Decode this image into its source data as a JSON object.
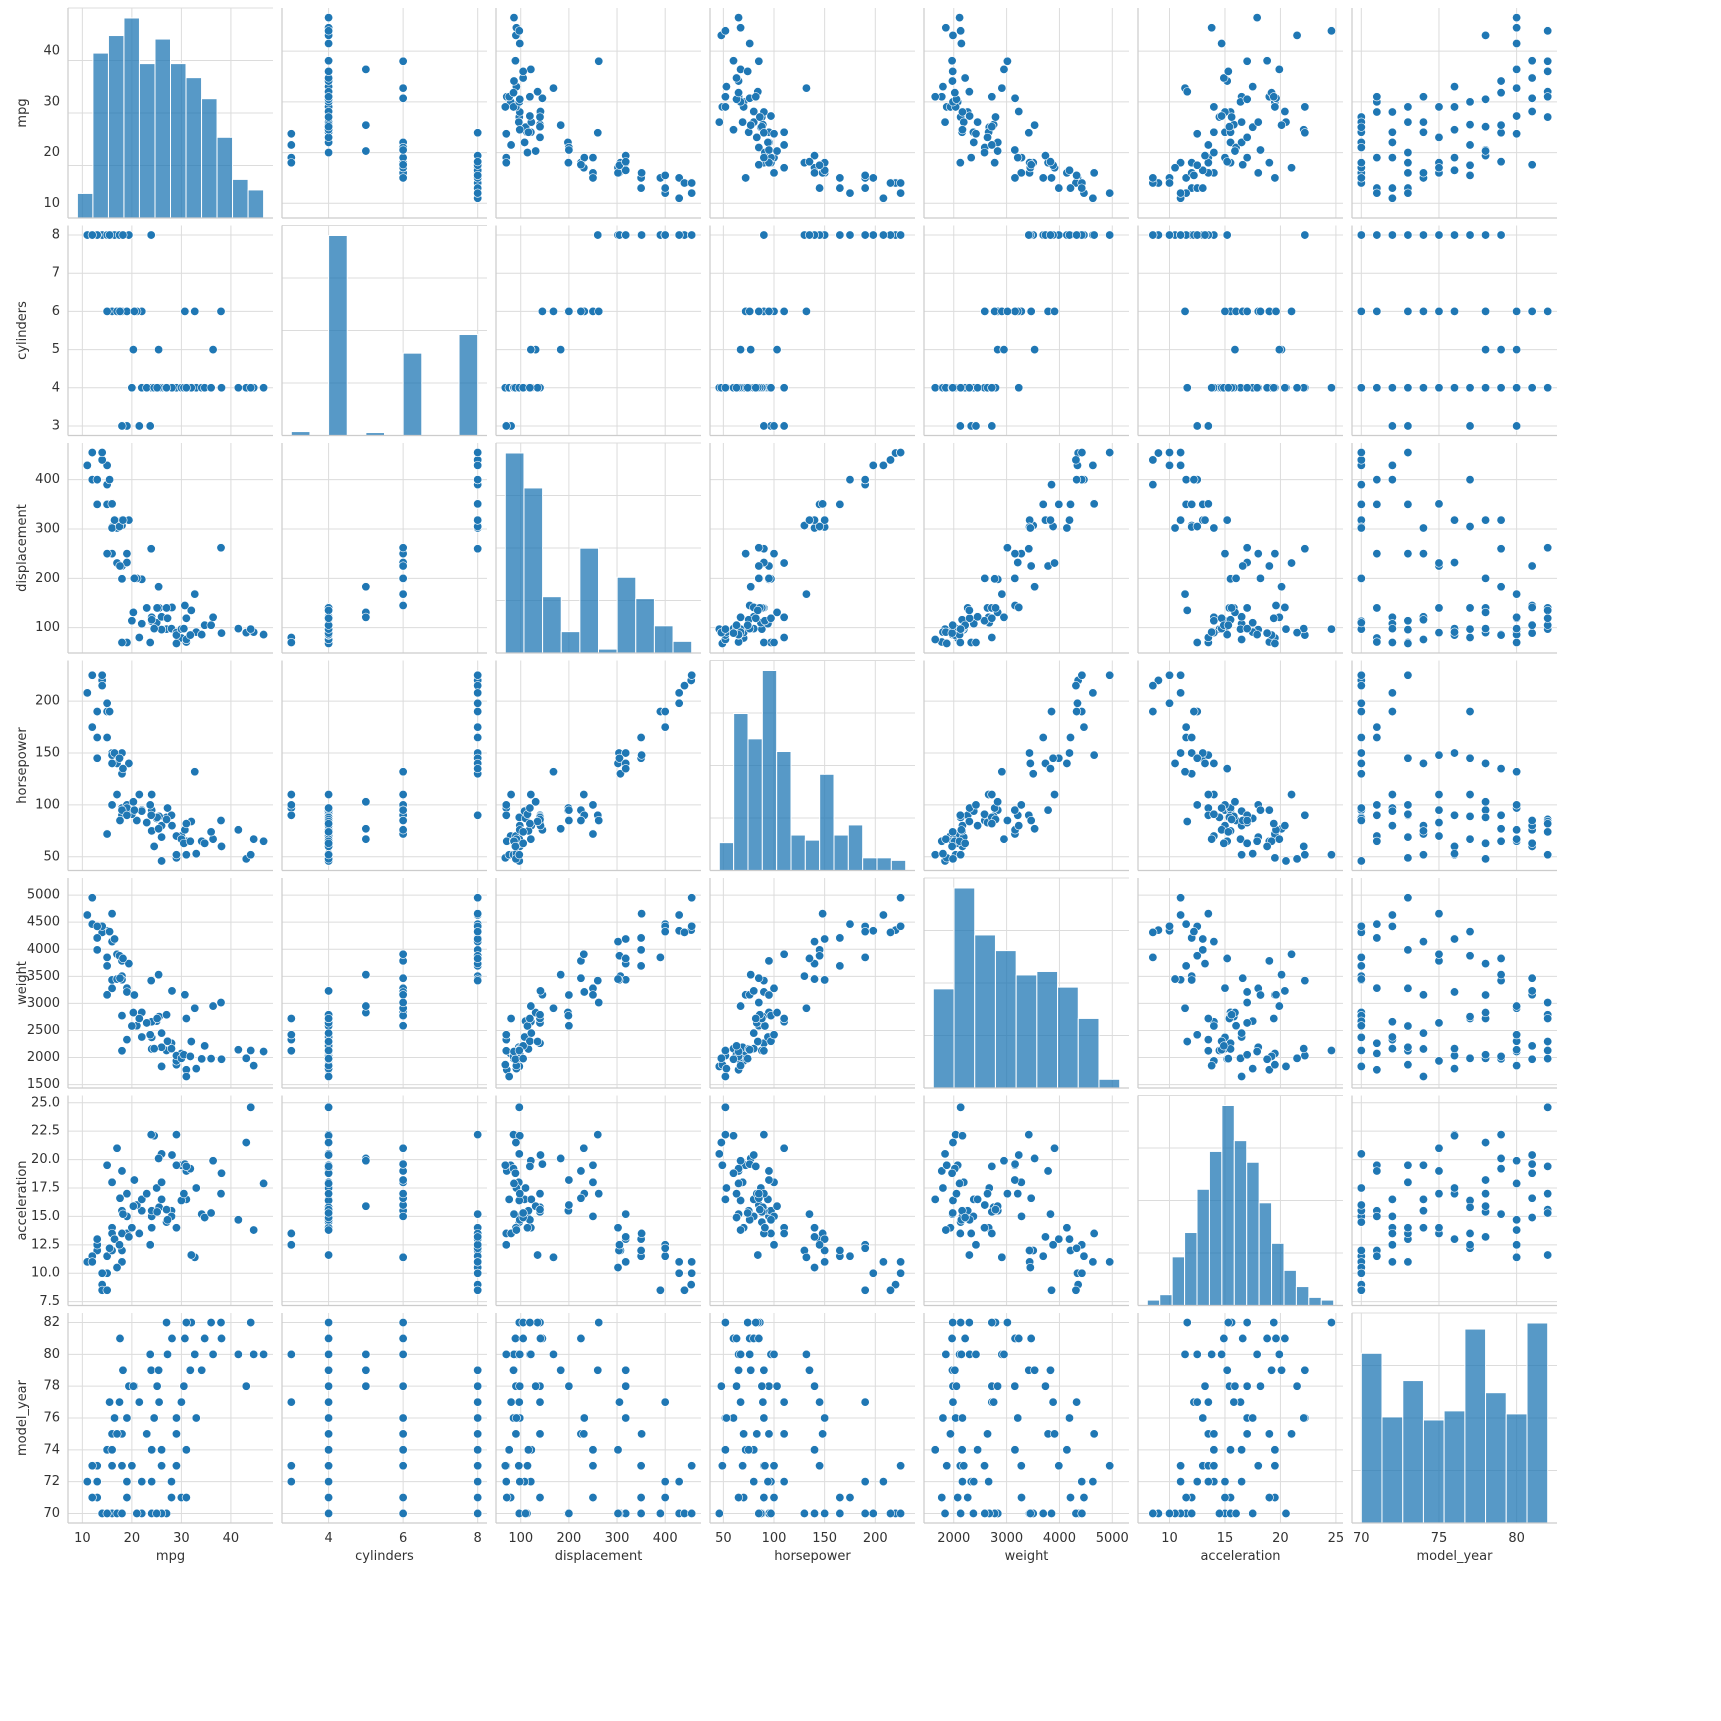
{
  "chart_data": {
    "type": "pairplot",
    "color": "#1f77b4",
    "grid": true,
    "variables": [
      {
        "name": "mpg",
        "lim": [
          7.1,
          48.5
        ],
        "xticks": [
          10,
          20,
          30,
          40
        ],
        "yticks": [
          10,
          20,
          30,
          40
        ]
      },
      {
        "name": "cylinders",
        "lim": [
          2.75,
          8.25
        ],
        "xticks": [
          4,
          6,
          8
        ],
        "yticks": [
          3,
          4,
          5,
          6,
          7,
          8
        ]
      },
      {
        "name": "displacement",
        "lim": [
          48.65,
          474.35
        ],
        "xticks": [
          100,
          200,
          300,
          400
        ],
        "yticks": [
          100,
          200,
          300,
          400
        ]
      },
      {
        "name": "horsepower",
        "lim": [
          36.8,
          239.2
        ],
        "xticks": [
          50,
          100,
          150,
          200
        ],
        "yticks": [
          50,
          100,
          150,
          200
        ]
      },
      {
        "name": "weight",
        "lim": [
          1436.65,
          5316.35
        ],
        "xticks": [
          2000,
          3000,
          4000,
          5000
        ],
        "yticks": [
          1500,
          2000,
          2500,
          3000,
          3500,
          4000,
          4500,
          5000
        ]
      },
      {
        "name": "acceleration",
        "lim": [
          7.16,
          25.64
        ],
        "xticks": [
          10,
          15,
          20,
          25
        ],
        "yticks": [
          7.5,
          {
            "value": 10,
            "label": "10.0"
          },
          12.5,
          {
            "value": 15,
            "label": "15.0"
          },
          17.5,
          {
            "value": 20,
            "label": "20.0"
          },
          22.5,
          {
            "value": 25,
            "label": "25.0"
          }
        ]
      },
      {
        "name": "model_year",
        "lim": [
          69.4,
          82.6
        ],
        "xticks": [
          70,
          75,
          80
        ],
        "yticks": [
          70,
          72,
          74,
          76,
          78,
          80,
          82
        ]
      }
    ],
    "rows": [
      [
        18,
        8,
        307,
        130,
        3504,
        12,
        70
      ],
      [
        15,
        8,
        350,
        165,
        3693,
        11.5,
        70
      ],
      [
        18,
        8,
        318,
        150,
        3436,
        11,
        70
      ],
      [
        16,
        8,
        304,
        150,
        3433,
        12,
        70
      ],
      [
        17,
        8,
        302,
        140,
        3449,
        10.5,
        70
      ],
      [
        15,
        8,
        429,
        198,
        4341,
        10,
        70
      ],
      [
        14,
        8,
        454,
        220,
        4354,
        9,
        70
      ],
      [
        14,
        8,
        440,
        215,
        4312,
        8.5,
        70
      ],
      [
        14,
        8,
        455,
        225,
        4425,
        10,
        70
      ],
      [
        15,
        8,
        390,
        190,
        3850,
        8.5,
        70
      ],
      [
        24,
        4,
        113,
        95,
        2372,
        15,
        70
      ],
      [
        22,
        6,
        198,
        95,
        2833,
        15.5,
        70
      ],
      [
        18,
        6,
        199,
        97,
        2774,
        15.5,
        70
      ],
      [
        27,
        4,
        97,
        88,
        2130,
        14.5,
        70
      ],
      [
        26,
        4,
        97,
        46,
        1835,
        20.5,
        70
      ],
      [
        25,
        4,
        110,
        87,
        2672,
        17.5,
        70
      ],
      [
        21,
        6,
        200,
        85,
        2587,
        16,
        70
      ],
      [
        28,
        4,
        140,
        90,
        2264,
        15.5,
        71
      ],
      [
        19,
        6,
        250,
        100,
        3282,
        15,
        71
      ],
      [
        13,
        8,
        350,
        165,
        4209,
        12,
        71
      ],
      [
        12,
        8,
        400,
        175,
        4464,
        11.5,
        71
      ],
      [
        30,
        4,
        79,
        70,
        2074,
        19.5,
        71
      ],
      [
        31,
        4,
        71,
        65,
        1773,
        19,
        71
      ],
      [
        13,
        8,
        400,
        190,
        4422,
        12.5,
        72
      ],
      [
        24,
        4,
        121,
        110,
        2660,
        14,
        72
      ],
      [
        19,
        3,
        70,
        97,
        2330,
        13.5,
        72
      ],
      [
        22,
        4,
        108,
        94,
        2379,
        16.5,
        72
      ],
      [
        28,
        4,
        98,
        80,
        2164,
        15,
        72
      ],
      [
        11,
        8,
        429,
        208,
        4633,
        11,
        72
      ],
      [
        13,
        8,
        350,
        145,
        3988,
        13,
        73
      ],
      [
        16,
        6,
        250,
        100,
        3278,
        18,
        73
      ],
      [
        12,
        8,
        455,
        225,
        4951,
        11,
        73
      ],
      [
        18,
        3,
        70,
        90,
        2124,
        13.5,
        73
      ],
      [
        29,
        4,
        68,
        49,
        1867,
        19.5,
        73
      ],
      [
        20,
        4,
        114,
        91,
        2582,
        14,
        73
      ],
      [
        26,
        4,
        96,
        69,
        2189,
        18,
        73
      ],
      [
        31,
        4,
        76,
        52,
        1649,
        16.5,
        74
      ],
      [
        26,
        4,
        122,
        80,
        2451,
        16.5,
        74
      ],
      [
        15,
        6,
        250,
        72,
        3158,
        19.5,
        74
      ],
      [
        16,
        8,
        302,
        140,
        4141,
        14,
        74
      ],
      [
        24,
        4,
        116,
        75,
        2158,
        15.5,
        74
      ],
      [
        18,
        6,
        225,
        95,
        3785,
        19,
        75
      ],
      [
        16,
        8,
        351,
        148,
        4657,
        13.5,
        75
      ],
      [
        29,
        4,
        90,
        70,
        1937,
        14,
        75
      ],
      [
        23,
        4,
        140,
        83,
        2639,
        17,
        75
      ],
      [
        17,
        6,
        231,
        110,
        3907,
        21,
        75
      ],
      [
        29,
        4,
        85,
        52,
        2035,
        22.2,
        76
      ],
      [
        16.5,
        8,
        318,
        150,
        4190,
        13,
        76
      ],
      [
        24.5,
        4,
        98,
        60,
        2164,
        22.1,
        76
      ],
      [
        19,
        6,
        232,
        90,
        3211,
        17,
        76
      ],
      [
        33,
        4,
        91,
        53,
        1795,
        17.5,
        76
      ],
      [
        15.5,
        8,
        400,
        190,
        4325,
        12.2,
        77
      ],
      [
        21.5,
        3,
        80,
        110,
        2720,
        13.5,
        77
      ],
      [
        30,
        4,
        97,
        67,
        1985,
        16.4,
        77
      ],
      [
        25.5,
        4,
        140,
        89,
        2755,
        15.8,
        77
      ],
      [
        17.5,
        8,
        305,
        145,
        3880,
        12.5,
        77
      ],
      [
        20.5,
        6,
        200,
        95,
        3155,
        18.2,
        78
      ],
      [
        43.1,
        4,
        90,
        48,
        1985,
        21.5,
        78
      ],
      [
        19.4,
        8,
        318,
        140,
        3735,
        13.2,
        78
      ],
      [
        30.5,
        4,
        98,
        63,
        2051,
        17,
        78
      ],
      [
        25.1,
        4,
        140,
        88,
        2720,
        15.4,
        78
      ],
      [
        20.3,
        5,
        131,
        103,
        2830,
        15.9,
        78
      ],
      [
        23.9,
        8,
        260,
        90,
        3420,
        22.2,
        79
      ],
      [
        34.1,
        4,
        86,
        65,
        1975,
        15.2,
        79
      ],
      [
        18.2,
        8,
        318,
        135,
        3830,
        15.2,
        79
      ],
      [
        25.4,
        5,
        183,
        77,
        3530,
        20.1,
        79
      ],
      [
        31.8,
        4,
        85,
        65,
        2020,
        19.2,
        79
      ],
      [
        44.6,
        4,
        91,
        67,
        1850,
        13.8,
        80
      ],
      [
        46.6,
        4,
        86,
        65,
        2110,
        17.9,
        80
      ],
      [
        32.7,
        6,
        168,
        132,
        2910,
        11.4,
        80
      ],
      [
        27.2,
        4,
        119,
        97,
        2300,
        14.7,
        80
      ],
      [
        23.7,
        3,
        70,
        100,
        2420,
        12.5,
        80
      ],
      [
        36.4,
        5,
        121,
        67,
        2950,
        19.9,
        80
      ],
      [
        41.5,
        4,
        98,
        76,
        2144,
        14.7,
        80
      ],
      [
        30.7,
        6,
        145,
        76,
        3160,
        19.6,
        81
      ],
      [
        38.1,
        4,
        89,
        60,
        1968,
        18.8,
        81
      ],
      [
        28.1,
        4,
        141,
        80,
        3230,
        20.4,
        81
      ],
      [
        17.6,
        6,
        225,
        85,
        3465,
        16.6,
        81
      ],
      [
        34.7,
        4,
        105,
        63,
        2215,
        14.9,
        81
      ],
      [
        38,
        6,
        262,
        85,
        3015,
        17,
        82
      ],
      [
        44,
        4,
        97,
        52,
        2130,
        24.6,
        82
      ],
      [
        27,
        4,
        140,
        86,
        2790,
        15.6,
        82
      ],
      [
        32,
        4,
        135,
        84,
        2295,
        11.6,
        82
      ],
      [
        36,
        4,
        105,
        74,
        1980,
        15.3,
        82
      ],
      [
        31,
        4,
        119,
        82,
        2720,
        19.4,
        82
      ]
    ],
    "histograms": [
      {
        "bins": [
          9,
          12.13,
          15.27,
          18.4,
          21.53,
          24.67,
          27.8,
          30.93,
          34.07,
          37.2,
          40.33,
          43.47,
          46.6
        ],
        "counts": [
          7,
          47,
          52,
          57,
          44,
          51,
          44,
          40,
          34,
          23,
          11,
          8
        ]
      },
      {
        "bins": [
          3,
          3.5,
          4,
          4.5,
          5,
          5.5,
          6,
          6.5,
          7,
          7.5,
          8
        ],
        "counts": [
          4,
          0,
          204,
          0,
          3,
          0,
          84,
          0,
          0,
          103
        ]
      },
      {
        "bins": [
          68,
          106.7,
          145.4,
          184.1,
          222.8,
          261.5,
          300.2,
          338.9,
          377.6,
          416.3,
          455
        ],
        "counts": [
          103,
          85,
          29,
          11,
          54,
          2,
          39,
          28,
          14,
          6
        ]
      },
      {
        "bins": [
          46,
          60.15,
          74.31,
          88.46,
          102.62,
          116.77,
          130.92,
          145.08,
          159.23,
          173.38,
          187.54,
          201.69,
          215.85,
          230
        ],
        "counts": [
          11,
          62,
          52,
          79,
          47,
          14,
          12,
          38,
          14,
          18,
          5,
          5,
          4
        ]
      },
      {
        "bins": [
          1613,
          2004.9,
          2396.8,
          2788.7,
          3180.6,
          3572.4,
          3964.3,
          4356.2,
          4748.1,
          5140
        ],
        "counts": [
          57,
          115,
          88,
          79,
          65,
          67,
          58,
          40,
          5
        ]
      },
      {
        "bins": [
          8,
          9.12,
          10.24,
          11.36,
          12.48,
          13.6,
          14.72,
          15.84,
          16.96,
          18.08,
          19.2,
          20.32,
          21.44,
          22.56,
          23.68,
          24.8
        ],
        "counts": [
          2,
          4,
          18,
          27,
          43,
          57,
          74,
          61,
          53,
          38,
          23,
          13,
          7,
          3,
          2
        ]
      },
      {
        "bins": [
          70,
          71.33,
          72.67,
          74,
          75.33,
          76.67,
          78,
          79.33,
          80.67,
          82
        ],
        "counts": [
          56,
          35,
          47,
          34,
          37,
          64,
          43,
          36,
          66
        ]
      }
    ]
  }
}
